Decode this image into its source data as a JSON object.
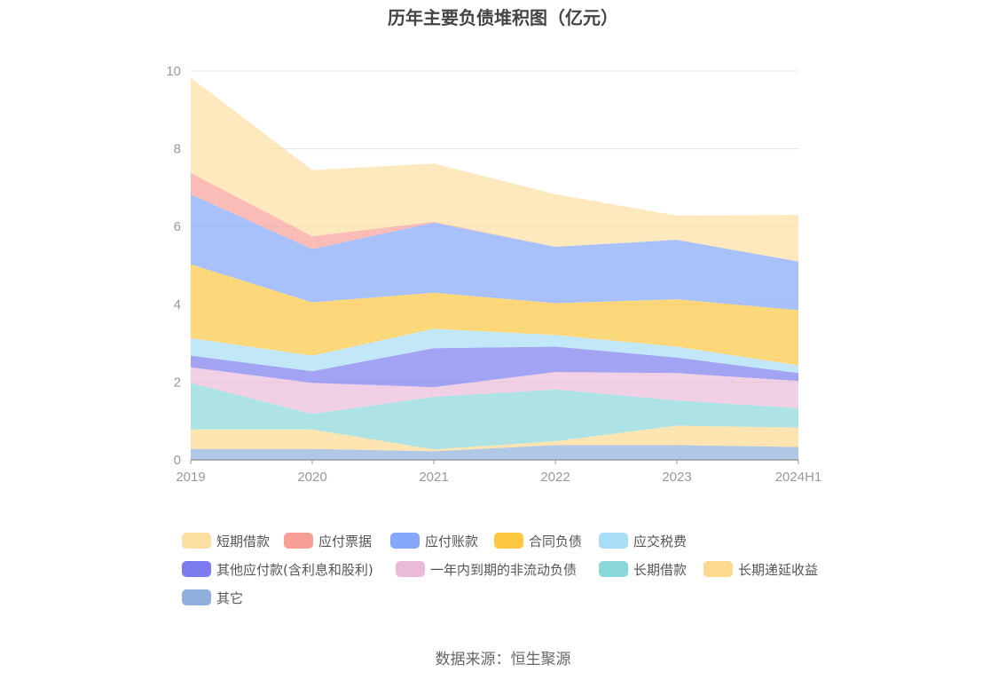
{
  "chart_data": {
    "type": "area",
    "stacked": true,
    "title": "历年主要负债堆积图（亿元）",
    "x": [
      "2019",
      "2020",
      "2021",
      "2022",
      "2023",
      "2024H1"
    ],
    "ylim": [
      0,
      10
    ],
    "yticks": [
      "0",
      "2",
      "4",
      "6",
      "8",
      "10"
    ],
    "grid": true,
    "legend_position": "bottom",
    "series": [
      {
        "name": "其它",
        "color": "#8fb0dc",
        "values": [
          0.28,
          0.28,
          0.22,
          0.38,
          0.38,
          0.33
        ]
      },
      {
        "name": "长期递延收益",
        "color": "#fcd98e",
        "values": [
          0.5,
          0.5,
          0.05,
          0.1,
          0.5,
          0.5
        ]
      },
      {
        "name": "长期借款",
        "color": "#8ad7d9",
        "values": [
          1.2,
          0.4,
          1.35,
          1.33,
          0.65,
          0.5
        ]
      },
      {
        "name": "一年内到期的非流动负债",
        "color": "#ebbada",
        "values": [
          0.4,
          0.8,
          0.25,
          0.45,
          0.7,
          0.7
        ]
      },
      {
        "name": "其他应付款(含利息和股利)",
        "color": "#7c7cf0",
        "values": [
          0.3,
          0.3,
          1.0,
          0.65,
          0.4,
          0.2
        ]
      },
      {
        "name": "应交税费",
        "color": "#a8ddf7",
        "values": [
          0.45,
          0.4,
          0.5,
          0.3,
          0.28,
          0.2
        ]
      },
      {
        "name": "合同负债",
        "color": "#fcc842",
        "values": [
          1.9,
          1.37,
          0.93,
          0.82,
          1.22,
          1.42
        ]
      },
      {
        "name": "应付账款",
        "color": "#85a6fa",
        "values": [
          1.8,
          1.37,
          1.8,
          1.45,
          1.53,
          1.25
        ]
      },
      {
        "name": "应付票据",
        "color": "#f8a098",
        "values": [
          0.55,
          0.33,
          0.02,
          0.0,
          0.0,
          0.0
        ]
      },
      {
        "name": "短期借款",
        "color": "#fddfa3",
        "values": [
          2.45,
          1.7,
          1.5,
          1.35,
          0.62,
          1.2
        ]
      }
    ],
    "legend_order": [
      "短期借款",
      "应付票据",
      "应付账款",
      "合同负债",
      "应交税费",
      "其他应付款(含利息和股利)",
      "一年内到期的非流动负债",
      "长期借款",
      "长期递延收益",
      "其它"
    ]
  },
  "source_text": "数据来源：恒生聚源"
}
